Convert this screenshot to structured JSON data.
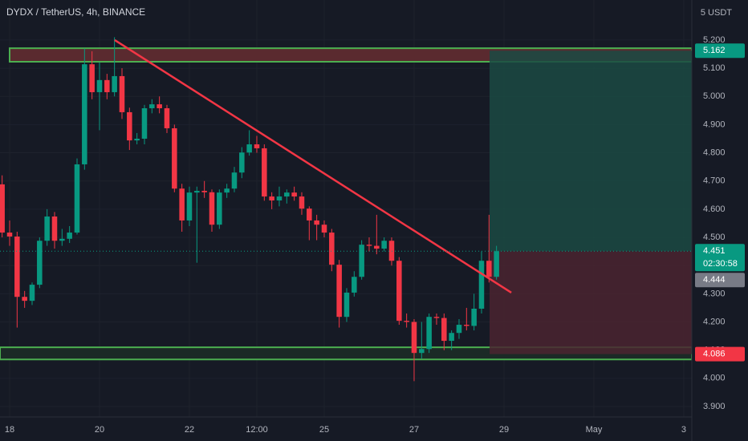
{
  "chart_data": {
    "type": "candlestick",
    "title": "DYDX / TetherUS, 4h, BINANCE",
    "unit_label": "5 USDT",
    "up_color": "#089981",
    "down_color": "#f23645",
    "x": [
      -4,
      0,
      4,
      8,
      12,
      16,
      20,
      24,
      28,
      32,
      36,
      40,
      44,
      48,
      52,
      56,
      60,
      64,
      68,
      72,
      76,
      80,
      84,
      88,
      92,
      96,
      100,
      104,
      108,
      112,
      116,
      120,
      124,
      128,
      132,
      136,
      140,
      144,
      148,
      152,
      156,
      160,
      164,
      168,
      172,
      176,
      180,
      184,
      188,
      192,
      196,
      200,
      204,
      208,
      212,
      216,
      220,
      224,
      228,
      232,
      236,
      240,
      244,
      248,
      252,
      256,
      260
    ],
    "open": [
      4.688,
      4.517,
      4.503,
      4.289,
      4.275,
      4.332,
      4.488,
      4.574,
      4.488,
      4.495,
      4.517,
      4.759,
      5.114,
      5.015,
      5.058,
      5.015,
      5.072,
      4.944,
      4.844,
      4.85,
      4.958,
      4.972,
      4.958,
      4.887,
      4.673,
      4.56,
      4.659,
      4.665,
      4.66,
      4.545,
      4.659,
      4.673,
      4.73,
      4.801,
      4.83,
      4.816,
      4.645,
      4.631,
      4.645,
      4.659,
      4.645,
      4.602,
      4.56,
      4.545,
      4.517,
      4.403,
      4.218,
      4.304,
      4.36,
      4.474,
      4.47,
      4.46,
      4.488,
      4.417,
      4.204,
      4.2,
      4.09,
      4.104,
      4.218,
      4.214,
      4.133,
      4.161,
      4.19,
      4.186,
      4.247,
      4.417,
      4.36
    ],
    "high": [
      4.72,
      4.56,
      4.52,
      4.31,
      4.34,
      4.5,
      4.6,
      4.59,
      4.53,
      4.54,
      4.78,
      5.17,
      5.16,
      5.12,
      5.08,
      5.21,
      5.1,
      4.96,
      4.87,
      4.97,
      4.99,
      5.0,
      4.97,
      4.9,
      4.69,
      4.68,
      4.68,
      4.7,
      4.67,
      4.67,
      4.69,
      4.75,
      4.82,
      4.88,
      4.86,
      4.83,
      4.66,
      4.68,
      4.67,
      4.68,
      4.66,
      4.61,
      4.58,
      4.56,
      4.53,
      4.42,
      4.32,
      4.38,
      4.49,
      4.5,
      4.58,
      4.5,
      4.5,
      4.43,
      4.23,
      4.21,
      4.2,
      4.23,
      4.23,
      4.23,
      4.17,
      4.21,
      4.25,
      4.3,
      4.45,
      4.58,
      4.47
    ],
    "low": [
      4.5,
      4.47,
      4.18,
      4.25,
      4.26,
      4.32,
      4.47,
      4.46,
      4.47,
      4.48,
      4.51,
      4.74,
      4.99,
      4.88,
      4.99,
      5.0,
      4.92,
      4.81,
      4.83,
      4.83,
      4.94,
      4.94,
      4.87,
      4.66,
      4.52,
      4.54,
      4.41,
      4.64,
      4.52,
      4.53,
      4.64,
      4.66,
      4.71,
      4.79,
      4.8,
      4.63,
      4.6,
      4.61,
      4.62,
      4.63,
      4.58,
      4.49,
      4.49,
      4.5,
      4.38,
      4.18,
      4.2,
      4.29,
      4.35,
      4.45,
      4.44,
      4.45,
      4.4,
      4.19,
      4.18,
      3.99,
      4.07,
      4.09,
      4.19,
      4.1,
      4.1,
      4.14,
      4.17,
      4.17,
      4.23,
      4.34,
      4.35
    ],
    "close": [
      4.517,
      4.503,
      4.289,
      4.275,
      4.332,
      4.488,
      4.574,
      4.488,
      4.495,
      4.517,
      4.759,
      5.114,
      5.015,
      5.058,
      5.015,
      5.072,
      4.944,
      4.844,
      4.85,
      4.958,
      4.972,
      4.958,
      4.887,
      4.673,
      4.56,
      4.659,
      4.665,
      4.66,
      4.545,
      4.659,
      4.673,
      4.73,
      4.801,
      4.83,
      4.816,
      4.645,
      4.631,
      4.645,
      4.659,
      4.645,
      4.602,
      4.56,
      4.545,
      4.517,
      4.403,
      4.218,
      4.304,
      4.36,
      4.474,
      4.47,
      4.46,
      4.488,
      4.417,
      4.204,
      4.2,
      4.09,
      4.104,
      4.218,
      4.214,
      4.133,
      4.161,
      4.19,
      4.186,
      4.247,
      4.417,
      4.36,
      4.451
    ],
    "xlim": [
      -5.14,
      364.3
    ],
    "ylim": [
      3.863,
      5.342
    ],
    "xticks": [
      {
        "value": 0,
        "label": "18"
      },
      {
        "value": 48,
        "label": "20"
      },
      {
        "value": 96,
        "label": "22"
      },
      {
        "value": 132,
        "label": "12:00"
      },
      {
        "value": 168,
        "label": "25"
      },
      {
        "value": 216,
        "label": "27"
      },
      {
        "value": 264,
        "label": "29"
      },
      {
        "value": 312,
        "label": "May"
      },
      {
        "value": 360,
        "label": "3"
      }
    ],
    "yticks": [
      {
        "value": 3.9,
        "label": "3.900"
      },
      {
        "value": 4.0,
        "label": "4.000"
      },
      {
        "value": 4.1,
        "label": "4.100"
      },
      {
        "value": 4.2,
        "label": "4.200"
      },
      {
        "value": 4.3,
        "label": "4.300"
      },
      {
        "value": 4.4,
        "label": "4.400"
      },
      {
        "value": 4.5,
        "label": "4.500"
      },
      {
        "value": 4.6,
        "label": "4.600"
      },
      {
        "value": 4.7,
        "label": "4.700"
      },
      {
        "value": 4.8,
        "label": "4.800"
      },
      {
        "value": 4.9,
        "label": "4.900"
      },
      {
        "value": 5.0,
        "label": "5.000"
      },
      {
        "value": 5.1,
        "label": "5.100"
      },
      {
        "value": 5.2,
        "label": "5.200"
      }
    ],
    "grid": true,
    "zones": [
      {
        "x": [
          0,
          364.3
        ],
        "y": [
          5.123,
          5.171
        ],
        "fill": "#5a2a2f",
        "stroke": "#4caf50"
      },
      {
        "x": [
          -5.14,
          364.3
        ],
        "y": [
          4.067,
          4.11
        ],
        "fill": "#1b2a26",
        "stroke": "#4caf50"
      }
    ],
    "trendline": {
      "x": [
        56.1,
        267.9
      ],
      "y": [
        5.2,
        4.304
      ],
      "color": "#f23645"
    },
    "position": {
      "x": [
        256.3,
        364.3
      ],
      "entry": 4.451,
      "target": 5.162,
      "stop": 4.086,
      "profit_color": "#1b4a43",
      "loss_color": "#4a2530"
    },
    "markers": [
      {
        "value": 5.162,
        "color": "#089981"
      },
      {
        "value": 4.451,
        "color": "#089981",
        "countdown": "02:30:58"
      },
      {
        "value": 4.444,
        "color": "#787b86"
      },
      {
        "value": 4.086,
        "color": "#f23645"
      }
    ]
  }
}
